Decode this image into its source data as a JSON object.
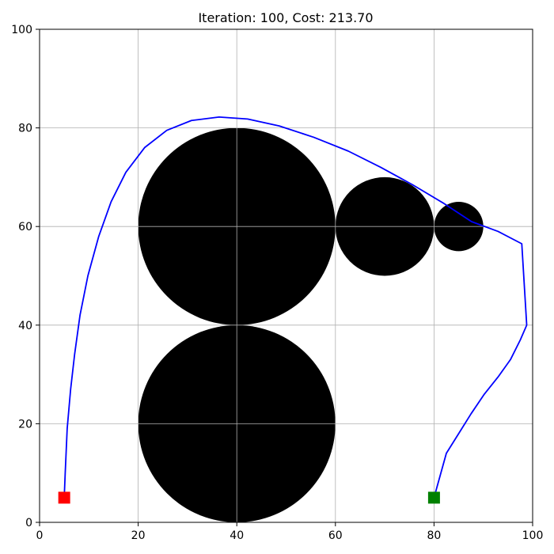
{
  "chart_data": {
    "type": "line",
    "title": "Iteration: 100, Cost: 213.70",
    "xlim": [
      0,
      100
    ],
    "ylim": [
      0,
      100
    ],
    "xticks": [
      0,
      20,
      40,
      60,
      80,
      100
    ],
    "yticks": [
      0,
      20,
      40,
      60,
      80,
      100
    ],
    "grid": true,
    "obstacles": [
      {
        "cx": 40,
        "cy": 60,
        "r": 20
      },
      {
        "cx": 40,
        "cy": 20,
        "r": 20
      },
      {
        "cx": 70,
        "cy": 60,
        "r": 10
      },
      {
        "cx": 85,
        "cy": 60,
        "r": 5
      }
    ],
    "path": {
      "color": "#0000ff",
      "x": [
        5,
        5.2,
        5.6,
        6.3,
        7.1,
        8.2,
        9.8,
        12.0,
        14.5,
        17.5,
        21.3,
        25.8,
        30.8,
        36.4,
        42.2,
        48.6,
        55.6,
        62.6,
        69.2,
        75.6,
        81.8,
        87.6,
        93.0,
        97.8,
        98.8,
        98.8,
        97.5,
        95.5,
        93.0,
        90.2,
        87.5,
        85.0,
        82.5,
        80.0
      ],
      "y": [
        5,
        10,
        19,
        27,
        34,
        42,
        50,
        58,
        65,
        71,
        76,
        79.5,
        81.5,
        82.2,
        81.8,
        80.4,
        78.1,
        75.3,
        72.0,
        68.5,
        64.8,
        61.0,
        59.0,
        56.5,
        40,
        40,
        37,
        33,
        29.5,
        26,
        22,
        18,
        14,
        5
      ]
    },
    "start": {
      "x": 5,
      "y": 5,
      "color": "#ff0000"
    },
    "goal": {
      "x": 80,
      "y": 5,
      "color": "#008000"
    }
  }
}
